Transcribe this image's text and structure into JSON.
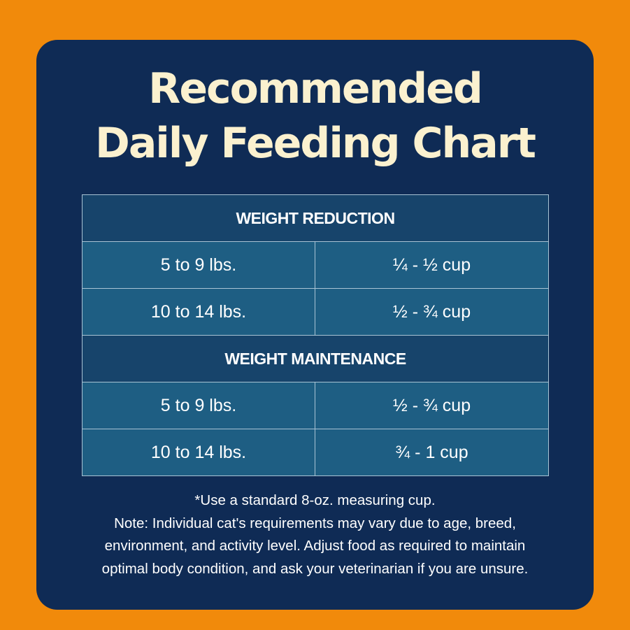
{
  "title": {
    "line1": "Recommended",
    "line2": "Daily Feeding Chart"
  },
  "table": {
    "sections": [
      {
        "heading": "WEIGHT REDUCTION",
        "rows": [
          {
            "weight": "5 to 9 lbs.",
            "amount": "¼ - ½ cup"
          },
          {
            "weight": "10 to 14 lbs.",
            "amount": "½ - ¾ cup"
          }
        ]
      },
      {
        "heading": "WEIGHT MAINTENANCE",
        "rows": [
          {
            "weight": "5 to 9 lbs.",
            "amount": "½ - ¾ cup"
          },
          {
            "weight": "10 to 14 lbs.",
            "amount": "¾ - 1 cup"
          }
        ]
      }
    ]
  },
  "notes": {
    "measure": "*Use a standard 8-oz. measuring cup.",
    "disclaimer": "Note: Individual cat's requirements may vary due to age, breed, environment, and activity level. Adjust food as required to maintain optimal body condition, and ask your veterinarian if you are unsure."
  },
  "colors": {
    "background": "#f18a0b",
    "card": "#0f2b55",
    "title": "#fbf1cf",
    "section_row": "#17446b",
    "data_row": "#1e5e83"
  }
}
